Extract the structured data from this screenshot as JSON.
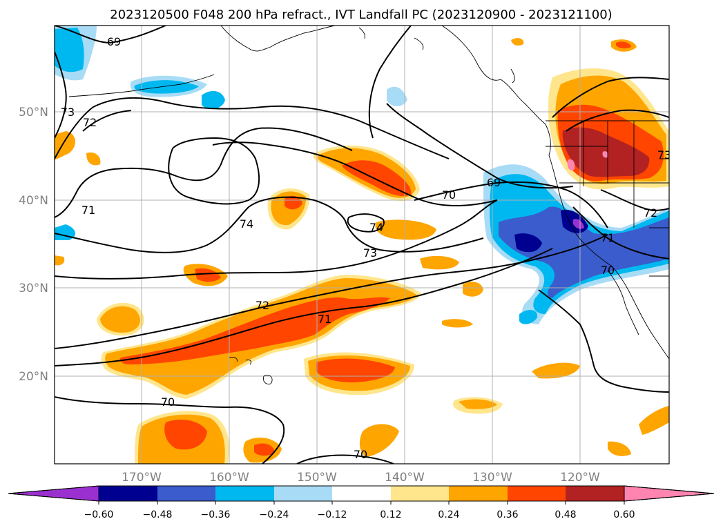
{
  "title": "2023120500 F048 200 hPa refract., IVT Landfall PC (2023120900 - 2023121100)",
  "lat_labels": [
    "50°N",
    "40°N",
    "30°N",
    "20°N"
  ],
  "lon_labels": [
    "170°W",
    "160°W",
    "150°W",
    "140°W",
    "130°W",
    "120°W"
  ],
  "contour_labels": [
    "69",
    "73",
    "72",
    "71",
    "74",
    "74",
    "73",
    "72",
    "71",
    "70",
    "70",
    "69",
    "70",
    "72",
    "71",
    "70",
    "73"
  ],
  "colorbar": {
    "tick_labels": [
      "−0.60",
      "−0.48",
      "−0.36",
      "−0.24",
      "−0.12",
      "0.12",
      "0.24",
      "0.36",
      "0.48",
      "0.60"
    ],
    "colors": [
      "#9b30d0",
      "#000090",
      "#3a5ccc",
      "#00b8f0",
      "#a8dcf6",
      "#ffffff",
      "#ffe68c",
      "#ffa500",
      "#ff4500",
      "#b22222",
      "#ff85b0"
    ]
  },
  "colors": {
    "pos_light": "#ffe68c",
    "pos_orange": "#ffa500",
    "pos_red": "#ff4500",
    "pos_dark": "#b22222",
    "pos_pink": "#ff85b0",
    "neg_light": "#a8dcf6",
    "neg_cyan": "#00b8f0",
    "neg_blue": "#3a5ccc",
    "neg_navy": "#000090",
    "grid": "#b0b0b0"
  }
}
